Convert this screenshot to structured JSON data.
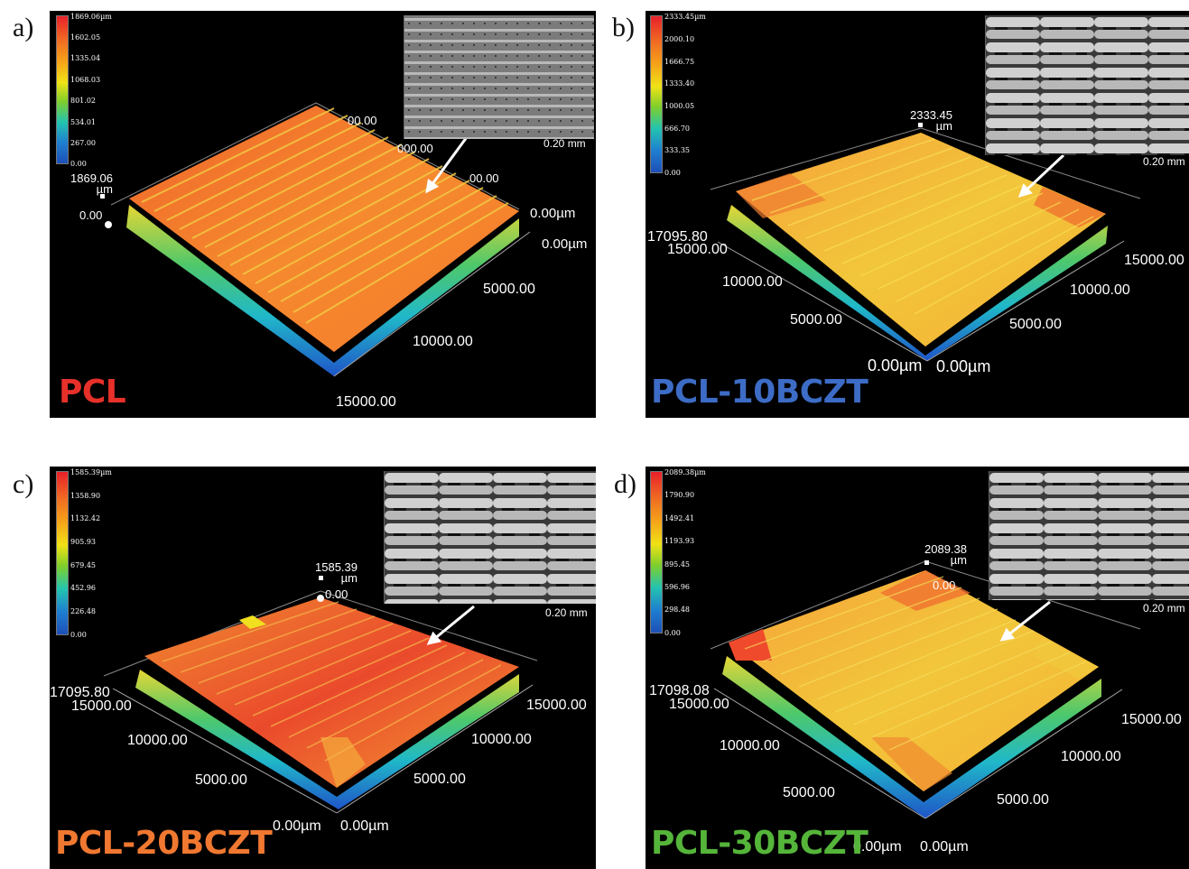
{
  "panels": [
    {
      "letter": "a)",
      "sample": "PCL",
      "sample_color": "#e8302a",
      "colorbar": [
        "1869.06µm",
        "1602.05",
        "1335.04",
        "1068.03",
        "801.02",
        "534.01",
        "267.00",
        "0.00"
      ],
      "z_max": "1869.06",
      "z_unit": "µm",
      "z_zero": "0.00",
      "axis_labels": {
        "right_top": "0.00µm",
        "right_second": "0.00µm",
        "right_mid": "5000.00",
        "right_low": "10000.00",
        "bottom": "15000.00",
        "partial_1": "00.00",
        "partial_2": "000.00",
        "partial_3": "00.00"
      },
      "scale_bar": "0.20 mm"
    },
    {
      "letter": "b)",
      "sample": "PCL-10BCZT",
      "sample_color": "#3d6cc6",
      "colorbar": [
        "2333.45µm",
        "2000.10",
        "1666.75",
        "1333.40",
        "1000.05",
        "666.70",
        "333.35",
        "0.00"
      ],
      "z_max": "2333.45",
      "z_unit": "µm",
      "axis_labels": {
        "left_top": "17095.80",
        "left_1": "15000.00",
        "left_2": "10000.00",
        "left_3": "5000.00",
        "origin_left": "0.00µm",
        "origin_right": "0.00µm",
        "right_1": "15000.00",
        "right_2": "10000.00",
        "right_3": "5000.00"
      },
      "scale_bar": "0.20 mm"
    },
    {
      "letter": "c)",
      "sample": "PCL-20BCZT",
      "sample_color": "#f07830",
      "colorbar": [
        "1585.39µm",
        "1358.90",
        "1132.42",
        "905.93",
        "679.45",
        "452.96",
        "226.48",
        "0.00"
      ],
      "z_max": "1585.39",
      "z_unit": "µm",
      "z_zero": "0.00",
      "axis_labels": {
        "left_top": "17095.80",
        "left_1": "15000.00",
        "left_2": "10000.00",
        "left_3": "5000.00",
        "origin_left": "0.00µm",
        "origin_right": "0.00µm",
        "right_1": "15000.00",
        "right_2": "10000.00",
        "right_3": "5000.00"
      },
      "scale_bar": "0.20 mm"
    },
    {
      "letter": "d)",
      "sample": "PCL-30BCZT",
      "sample_color": "#55b53a",
      "colorbar": [
        "2089.38µm",
        "1790.90",
        "1492.41",
        "1193.93",
        "895.45",
        "596.96",
        "298.48",
        "0.00"
      ],
      "z_max": "2089.38",
      "z_unit": "µm",
      "z_zero": "0.00",
      "axis_labels": {
        "left_top": "17098.08",
        "left_1": "15000.00",
        "left_2": "10000.00",
        "left_3": "5000.00",
        "origin_left": "0.00µm",
        "origin_right": "0.00µm",
        "right_1": "15000.00",
        "right_2": "10000.00",
        "right_3": "5000.00"
      },
      "scale_bar": "0.20 mm"
    }
  ]
}
